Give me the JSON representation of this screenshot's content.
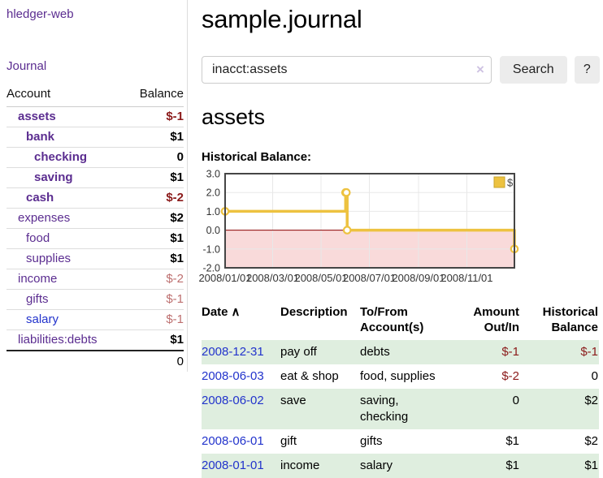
{
  "app": {
    "brand": "hledger-web"
  },
  "sidebar": {
    "journal_link": "Journal",
    "accounts_table": {
      "headers": {
        "account": "Account",
        "balance": "Balance"
      },
      "rows": [
        {
          "name": "assets",
          "depth": 1,
          "bold": true,
          "balance": "$-1",
          "neg": "strong"
        },
        {
          "name": "bank",
          "depth": 2,
          "bold": true,
          "balance": "$1"
        },
        {
          "name": "checking",
          "depth": 3,
          "bold": true,
          "balance": "0"
        },
        {
          "name": "saving",
          "depth": 3,
          "bold": true,
          "balance": "$1"
        },
        {
          "name": "cash",
          "depth": 2,
          "bold": true,
          "balance": "$-2",
          "neg": "strong"
        },
        {
          "name": "expenses",
          "depth": 1,
          "bold": false,
          "balance": "$2"
        },
        {
          "name": "food",
          "depth": 2,
          "bold": false,
          "balance": "$1"
        },
        {
          "name": "supplies",
          "depth": 2,
          "bold": false,
          "balance": "$1"
        },
        {
          "name": "income",
          "depth": 1,
          "bold": false,
          "balance": "$-2",
          "neg": "soft"
        },
        {
          "name": "gifts",
          "depth": 2,
          "bold": false,
          "balance": "$-1",
          "neg": "soft"
        },
        {
          "name": "salary",
          "depth": 2,
          "bold": false,
          "balance": "$-1",
          "neg": "soft",
          "link_color": "blue"
        },
        {
          "name": "liabilities:debts",
          "depth": 1,
          "bold": false,
          "balance": "$1"
        }
      ],
      "total": "0"
    }
  },
  "header": {
    "title": "sample.journal"
  },
  "search": {
    "value": "inacct:assets",
    "clear_icon": "×",
    "button_label": "Search",
    "help_label": "?"
  },
  "account_page": {
    "heading": "assets",
    "chart_label": "Historical Balance:"
  },
  "chart_data": {
    "type": "line",
    "style": "step",
    "title": "Historical Balance",
    "series": [
      {
        "name": "$",
        "color": "#edc240",
        "points": [
          [
            "2008-01-01",
            1
          ],
          [
            "2008-06-01",
            2
          ],
          [
            "2008-06-02",
            2
          ],
          [
            "2008-06-03",
            0
          ],
          [
            "2008-12-31",
            -1
          ]
        ]
      }
    ],
    "xlim": [
      "2008-01-01",
      "2008-12-31"
    ],
    "ylim": [
      -2,
      3
    ],
    "x_ticks": [
      "2008/01/01",
      "2008/03/01",
      "2008/05/01",
      "2008/07/01",
      "2008/09/01",
      "2008/11/01"
    ],
    "y_ticks": [
      -2.0,
      -1.0,
      0.0,
      1.0,
      2.0,
      3.0
    ],
    "grid": true,
    "legend_position": "top-right",
    "colors": {
      "grid_line": "#e8e8e8",
      "border": "#454545",
      "zero_line": "#8b0000",
      "negative_region": "#f9dada",
      "marker_fill": "#ffffff",
      "legend_swatch_border": "#c9a42e",
      "tick_text": "#333333"
    }
  },
  "register_table": {
    "headers": [
      {
        "lines": [
          "Date"
        ],
        "align": "left",
        "sort_icon": "∧",
        "sortable": true
      },
      {
        "lines": [
          "Description"
        ],
        "align": "left"
      },
      {
        "lines": [
          "To/From",
          "Account(s)"
        ],
        "align": "left"
      },
      {
        "lines": [
          "Amount",
          "Out/In"
        ],
        "align": "right"
      },
      {
        "lines": [
          "Historical",
          "Balance"
        ],
        "align": "right"
      }
    ],
    "rows": [
      {
        "date": "2008-12-31",
        "description": "pay off",
        "accounts_lines": [
          "debts"
        ],
        "amount": "$-1",
        "amount_neg": true,
        "balance": "$-1",
        "balance_neg": true
      },
      {
        "date": "2008-06-03",
        "description": "eat & shop",
        "accounts_lines": [
          "food, supplies"
        ],
        "amount": "$-2",
        "amount_neg": true,
        "balance": "0",
        "balance_neg": false
      },
      {
        "date": "2008-06-02",
        "description": "save",
        "accounts_lines": [
          "saving,",
          "checking"
        ],
        "amount": "0",
        "amount_neg": false,
        "balance": "$2",
        "balance_neg": false
      },
      {
        "date": "2008-06-01",
        "description": "gift",
        "accounts_lines": [
          "gifts"
        ],
        "amount": "$1",
        "amount_neg": false,
        "balance": "$2",
        "balance_neg": false
      },
      {
        "date": "2008-01-01",
        "description": "income",
        "accounts_lines": [
          "salary"
        ],
        "amount": "$1",
        "amount_neg": false,
        "balance": "$1",
        "balance_neg": false
      }
    ]
  }
}
